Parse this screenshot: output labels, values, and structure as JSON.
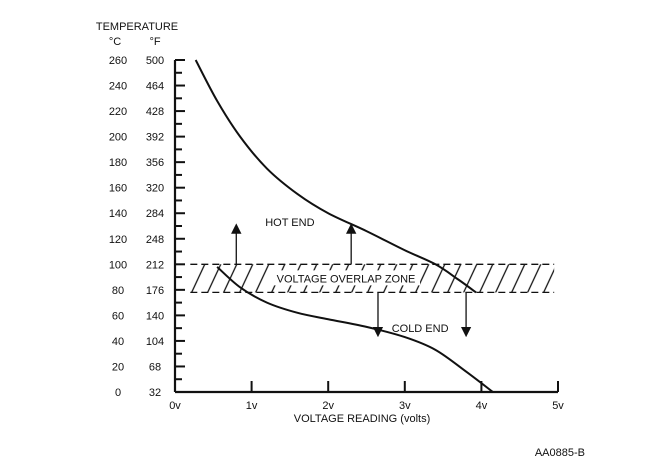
{
  "chart_data": {
    "type": "line",
    "title": "",
    "y_axis_title": "TEMPERATURE",
    "y_unit_c": "°C",
    "y_unit_f": "°F",
    "xlabel": "VOLTAGE READING (volts)",
    "xlim": [
      0,
      5
    ],
    "ylim_c": [
      0,
      260
    ],
    "x_ticks": [
      0,
      1,
      2,
      3,
      4,
      5
    ],
    "x_tick_labels": [
      "0v",
      "1v",
      "2v",
      "3v",
      "4v",
      "5v"
    ],
    "y_ticks_c": [
      0,
      20,
      40,
      60,
      80,
      100,
      120,
      140,
      160,
      180,
      200,
      220,
      240,
      260
    ],
    "y_tick_labels_c": [
      "0",
      "20",
      "40",
      "60",
      "80",
      "100",
      "120",
      "140",
      "160",
      "180",
      "200",
      "220",
      "240",
      "260"
    ],
    "y_tick_labels_f": [
      "32",
      "68",
      "104",
      "140",
      "176",
      "212",
      "248",
      "284",
      "320",
      "356",
      "392",
      "428",
      "464",
      "500"
    ],
    "series": [
      {
        "id": "hot-end",
        "x": [
          0.27,
          0.55,
          0.85,
          1.2,
          1.6,
          2.0,
          2.5,
          3.0,
          3.4,
          3.7,
          3.93
        ],
        "y": [
          260,
          228,
          200,
          175,
          155,
          140,
          126,
          111,
          100,
          88,
          78
        ]
      },
      {
        "id": "cold-end",
        "x": [
          0.55,
          0.85,
          1.2,
          1.6,
          2.0,
          2.5,
          3.0,
          3.4,
          3.8,
          4.15
        ],
        "y": [
          98,
          82,
          70,
          62,
          57,
          51,
          43,
          33,
          16,
          0
        ]
      }
    ],
    "zone": {
      "label": "VOLTAGE OVERLAP ZONE",
      "x_range": [
        0.2,
        4.95
      ],
      "y_range": [
        78,
        100
      ]
    },
    "annotations": [
      {
        "text": "HOT END",
        "x": 1.5,
        "y": 130
      },
      {
        "text": "COLD END",
        "x": 3.2,
        "y": 47
      }
    ],
    "arrows": [
      {
        "direction": "up",
        "x": 0.8,
        "y_from": 100,
        "y_to": 128
      },
      {
        "direction": "up",
        "x": 2.3,
        "y_from": 100,
        "y_to": 128
      },
      {
        "direction": "down",
        "x": 2.65,
        "y_from": 78,
        "y_to": 47
      },
      {
        "direction": "down",
        "x": 3.8,
        "y_from": 78,
        "y_to": 47
      }
    ],
    "grid": false,
    "figure_id": "AA0885-B"
  }
}
